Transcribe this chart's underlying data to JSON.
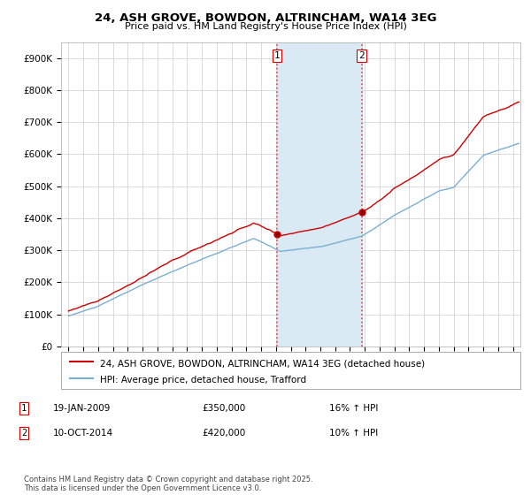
{
  "title": "24, ASH GROVE, BOWDON, ALTRINCHAM, WA14 3EG",
  "subtitle": "Price paid vs. HM Land Registry's House Price Index (HPI)",
  "legend_property": "24, ASH GROVE, BOWDON, ALTRINCHAM, WA14 3EG (detached house)",
  "legend_hpi": "HPI: Average price, detached house, Trafford",
  "footnote": "Contains HM Land Registry data © Crown copyright and database right 2025.\nThis data is licensed under the Open Government Licence v3.0.",
  "sale1_date": "19-JAN-2009",
  "sale1_price": "£350,000",
  "sale1_hpi": "16% ↑ HPI",
  "sale2_date": "10-OCT-2014",
  "sale2_price": "£420,000",
  "sale2_hpi": "10% ↑ HPI",
  "property_color": "#cc0000",
  "hpi_color": "#7aafd4",
  "shade_color": "#daeaf5",
  "vline_color": "#dd4444",
  "background_color": "#ffffff",
  "grid_color": "#cccccc",
  "ylim": [
    0,
    950000
  ],
  "yticks": [
    0,
    100000,
    200000,
    300000,
    400000,
    500000,
    600000,
    700000,
    800000,
    900000
  ],
  "sale1_x": 2009.05,
  "sale2_x": 2014.78,
  "sale1_price_val": 350000,
  "sale2_price_val": 420000
}
